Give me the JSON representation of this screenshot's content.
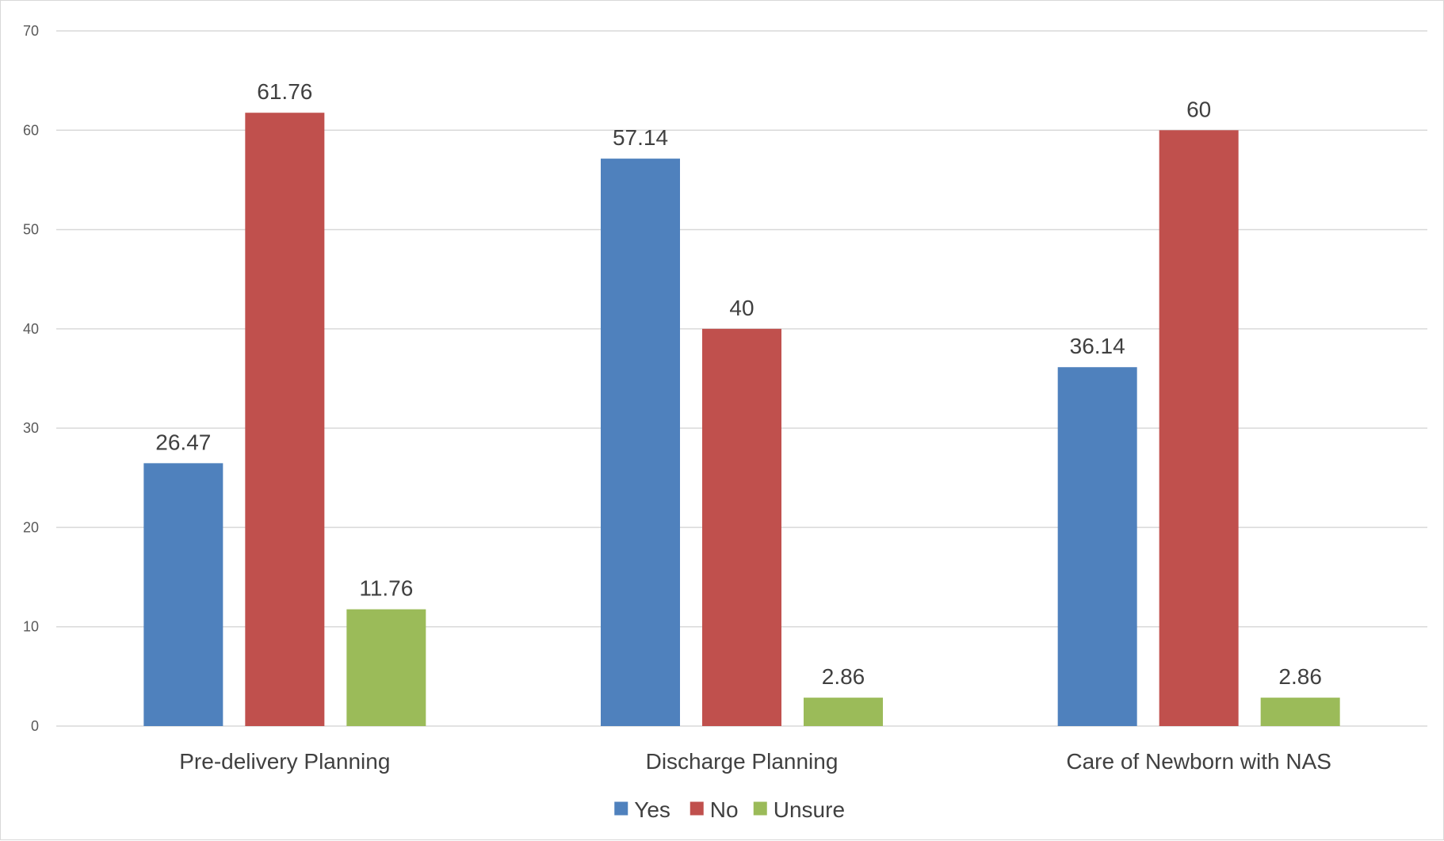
{
  "chart_data": {
    "type": "bar",
    "categories": [
      "Pre-delivery Planning",
      "Discharge Planning",
      "Care of Newborn with NAS"
    ],
    "series": [
      {
        "name": "Yes",
        "color": "#4F81BD",
        "values": [
          26.47,
          57.14,
          36.14
        ]
      },
      {
        "name": "No",
        "color": "#C0504D",
        "values": [
          61.76,
          40,
          60
        ]
      },
      {
        "name": "Unsure",
        "color": "#9BBB59",
        "values": [
          11.76,
          2.86,
          2.86
        ]
      }
    ],
    "data_labels": [
      [
        "26.47",
        "57.14",
        "36.14"
      ],
      [
        "61.76",
        "40",
        "60"
      ],
      [
        "11.76",
        "2.86",
        "2.86"
      ]
    ],
    "y_ticks": [
      "0",
      "10",
      "20",
      "30",
      "40",
      "50",
      "60",
      "70"
    ],
    "ylim": [
      0,
      70
    ],
    "grid": true,
    "legend_position": "bottom"
  }
}
